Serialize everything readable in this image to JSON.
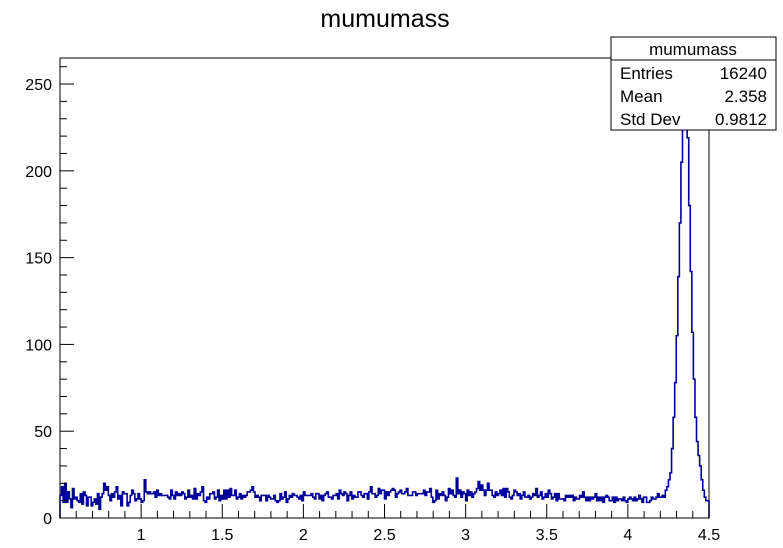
{
  "title": "mumumass",
  "stats_box": {
    "title": "mumumass",
    "rows": [
      {
        "label": "Entries",
        "value": "16240"
      },
      {
        "label": "Mean",
        "value": "2.358"
      },
      {
        "label": "Std Dev",
        "value": "0.9812"
      }
    ]
  },
  "colors": {
    "histogram": "#000099",
    "frame": "#000000",
    "background": "#ffffff"
  },
  "chart_data": {
    "type": "histogram",
    "title": "mumumass",
    "xlabel": "",
    "ylabel": "",
    "xlim": [
      0.5,
      4.5
    ],
    "ylim": [
      0,
      265
    ],
    "grid": false,
    "legend": "none",
    "x_ticks": [
      "1",
      "1.5",
      "2",
      "2.5",
      "3",
      "3.5",
      "4",
      "4.5"
    ],
    "y_ticks": [
      "0",
      "50",
      "100",
      "150",
      "200",
      "250"
    ],
    "bins": 400,
    "bin_width": 0.01,
    "values": [
      13,
      18,
      9,
      20,
      9,
      15,
      11,
      6,
      17,
      11,
      12,
      10,
      9,
      14,
      8,
      15,
      13,
      7,
      12,
      12,
      7,
      9,
      11,
      8,
      14,
      5,
      12,
      14,
      20,
      16,
      18,
      13,
      10,
      14,
      12,
      15,
      18,
      11,
      13,
      7,
      15,
      14,
      14,
      7,
      9,
      13,
      16,
      14,
      10,
      11,
      14,
      11,
      9,
      10,
      22,
      15,
      14,
      15,
      14,
      14,
      15,
      12,
      16,
      13,
      14,
      13,
      13,
      13,
      13,
      12,
      11,
      16,
      13,
      11,
      15,
      13,
      14,
      13,
      15,
      14,
      11,
      12,
      16,
      12,
      13,
      11,
      17,
      11,
      14,
      13,
      15,
      18,
      10,
      9,
      12,
      11,
      14,
      14,
      15,
      11,
      12,
      16,
      10,
      13,
      11,
      16,
      11,
      16,
      12,
      17,
      13,
      13,
      16,
      11,
      12,
      14,
      11,
      13,
      12,
      13,
      15,
      15,
      16,
      18,
      15,
      12,
      13,
      12,
      10,
      13,
      13,
      13,
      10,
      13,
      12,
      11,
      11,
      13,
      10,
      9,
      10,
      14,
      11,
      12,
      15,
      9,
      11,
      13,
      12,
      14,
      13,
      13,
      12,
      11,
      13,
      10,
      15,
      13,
      13,
      13,
      13,
      14,
      12,
      11,
      14,
      14,
      11,
      13,
      10,
      13,
      14,
      15,
      12,
      12,
      11,
      13,
      13,
      14,
      11,
      16,
      14,
      13,
      15,
      14,
      10,
      13,
      15,
      11,
      13,
      12,
      12,
      15,
      15,
      13,
      12,
      14,
      14,
      11,
      15,
      18,
      14,
      14,
      12,
      13,
      17,
      14,
      16,
      16,
      11,
      15,
      13,
      15,
      16,
      17,
      16,
      12,
      14,
      15,
      16,
      14,
      14,
      15,
      17,
      13,
      13,
      13,
      15,
      15,
      13,
      14,
      14,
      14,
      14,
      16,
      13,
      15,
      15,
      17,
      12,
      9,
      10,
      16,
      11,
      14,
      13,
      15,
      13,
      10,
      12,
      17,
      14,
      16,
      13,
      12,
      23,
      14,
      16,
      12,
      15,
      14,
      10,
      16,
      13,
      15,
      12,
      14,
      15,
      17,
      21,
      16,
      19,
      16,
      13,
      16,
      20,
      16,
      16,
      13,
      12,
      15,
      13,
      14,
      16,
      13,
      17,
      12,
      17,
      15,
      12,
      11,
      13,
      16,
      15,
      13,
      14,
      11,
      13,
      15,
      12,
      12,
      13,
      11,
      12,
      14,
      13,
      17,
      12,
      13,
      15,
      11,
      12,
      14,
      12,
      16,
      14,
      11,
      12,
      14,
      10,
      14,
      11,
      11,
      11,
      10,
      13,
      12,
      13,
      12,
      13,
      10,
      12,
      11,
      11,
      13,
      12,
      15,
      12,
      10,
      12,
      10,
      12,
      11,
      12,
      14,
      10,
      12,
      10,
      12,
      9,
      12,
      13,
      12,
      10,
      10,
      12,
      9,
      12,
      10,
      11,
      11,
      10,
      12,
      10,
      9,
      11,
      12,
      11,
      10,
      12,
      10,
      11,
      13,
      11,
      9,
      12,
      12,
      9,
      9,
      10,
      12,
      11,
      11,
      12,
      14,
      12,
      12,
      13,
      12,
      16,
      18,
      22,
      26,
      40,
      58,
      78,
      105,
      139,
      170,
      205,
      228,
      250,
      243,
      219,
      180,
      142,
      107,
      80,
      58,
      44,
      36,
      30,
      22,
      16,
      12,
      10,
      10
    ]
  }
}
